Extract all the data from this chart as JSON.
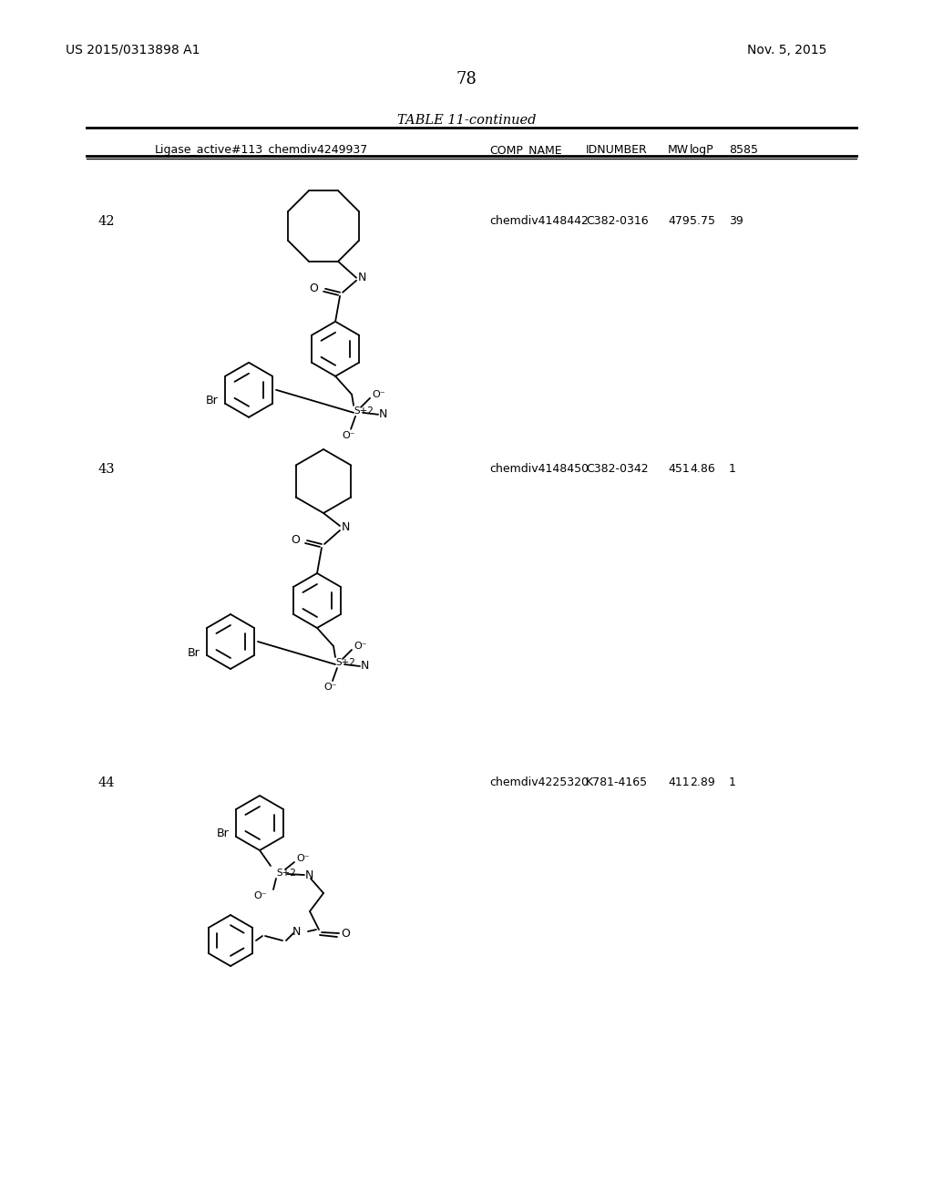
{
  "page_number": "78",
  "patent_number": "US 2015/0313898 A1",
  "patent_date": "Nov. 5, 2015",
  "table_title": "TABLE 11-continued",
  "col_headers": [
    "Ligase_active#113_chemdiv4249937",
    "COMP_NAME",
    "IDNUMBER",
    "MW",
    "logP",
    "8585"
  ],
  "rows": [
    {
      "row_num": "42",
      "comp_name": "chemdiv4148442",
      "idnumber": "C382-0316",
      "mw": "479",
      "logp": "5.75",
      "val": "39"
    },
    {
      "row_num": "43",
      "comp_name": "chemdiv4148450",
      "idnumber": "C382-0342",
      "mw": "451",
      "logp": "4.86",
      "val": "1"
    },
    {
      "row_num": "44",
      "comp_name": "chemdiv4225320",
      "idnumber": "K781-4165",
      "mw": "411",
      "logp": "2.89",
      "val": "1"
    }
  ],
  "bg_color": "#ffffff",
  "text_color": "#000000"
}
